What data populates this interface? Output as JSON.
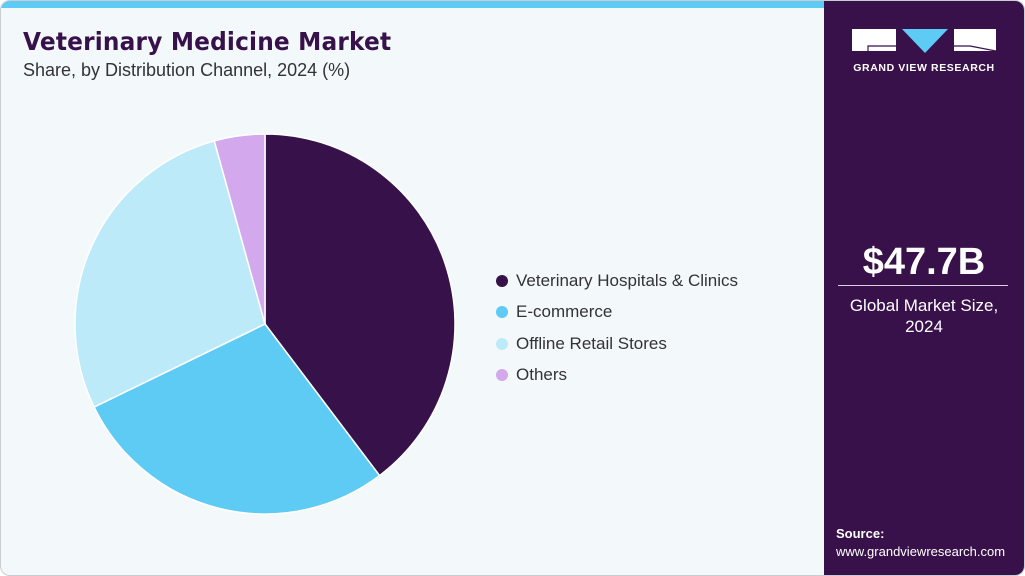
{
  "header": {
    "title": "Veterinary Medicine Market",
    "subtitle": "Share, by Distribution Channel, 2024 (%)"
  },
  "colors": {
    "accent_bar": "#5ecbf5",
    "sidebar_bg": "#38114a",
    "title": "#37114a",
    "background": "#f3f8fb"
  },
  "legend": [
    {
      "label": "Veterinary Hospitals & Clinics",
      "color": "#37114a"
    },
    {
      "label": "E-commerce",
      "color": "#5ecbf5"
    },
    {
      "label": "Offline Retail Stores",
      "color": "#bdeaf9"
    },
    {
      "label": "Others",
      "color": "#d4a8ec"
    }
  ],
  "sidebar": {
    "logo_text": "GRAND VIEW RESEARCH",
    "market_value": "$47.7B",
    "market_label_line1": "Global Market Size,",
    "market_label_line2": "2024",
    "source_title": "Source:",
    "source_url": "www.grandviewresearch.com"
  },
  "chart_data": {
    "type": "pie",
    "title": "Veterinary Medicine Market",
    "subtitle": "Share, by Distribution Channel, 2024 (%)",
    "categories": [
      "Veterinary Hospitals & Clinics",
      "E-commerce",
      "Offline Retail Stores",
      "Others"
    ],
    "values": [
      39.7,
      28.1,
      27.9,
      4.3
    ],
    "colors": [
      "#37114a",
      "#5ecbf5",
      "#bdeaf9",
      "#d4a8ec"
    ],
    "start_angle": "12 o'clock, clockwise",
    "legend_position": "right",
    "annotation": "$47.7B Global Market Size, 2024"
  }
}
